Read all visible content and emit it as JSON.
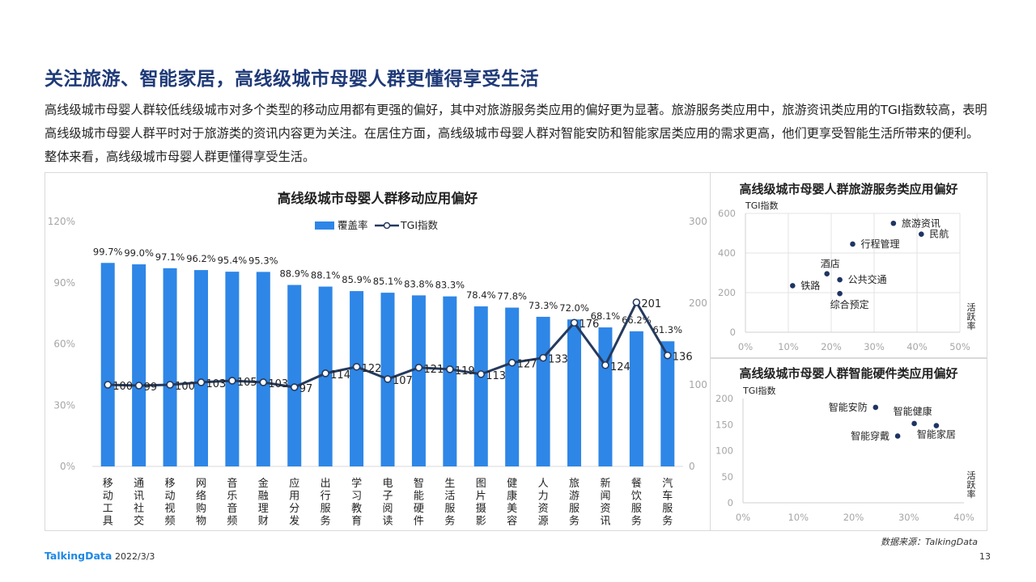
{
  "page": {
    "title": "关注旅游、智能家居，高线级城市母婴人群更懂得享受生活",
    "description": "高线级城市母婴人群较低线级城市对多个类型的移动应用都有更强的偏好，其中对旅游服务类应用的偏好更为显著。旅游服务类应用中，旅游资讯类应用的TGI指数较高，表明高线级城市母婴人群平时对于旅游类的资讯内容更为关注。在居住方面，高线级城市母婴人群对智能安防和智能家居类应用的需求更高，他们更享受智能生活所带来的便利。整体来看，高线级城市母婴人群更懂得享受生活。",
    "source": "数据来源：TalkingData",
    "logo": "TalkingData",
    "date": "2022/3/3",
    "page_number": "13"
  },
  "chart_data": [
    {
      "type": "bar",
      "title": "高线级城市母婴人群移动应用偏好",
      "categories": [
        "移动工具",
        "通讯社交",
        "移动视频",
        "网络购物",
        "音乐音频",
        "金融理财",
        "应用分发",
        "出行服务",
        "学习教育",
        "电子阅读",
        "智能硬件",
        "生活服务",
        "图片摄影",
        "健康美容",
        "人力资源",
        "旅游服务",
        "新闻资讯",
        "餐饮服务",
        "汽车服务"
      ],
      "series": [
        {
          "name": "覆盖率",
          "type": "bar",
          "axis": "left",
          "values": [
            99.7,
            99.0,
            97.1,
            96.2,
            95.4,
            95.3,
            88.9,
            88.1,
            85.9,
            85.1,
            83.8,
            83.3,
            78.4,
            77.8,
            73.3,
            72.0,
            68.1,
            66.2,
            61.3
          ],
          "labels": [
            "99.7%",
            "99.0%",
            "97.1%",
            "96.2%",
            "95.4%",
            "95.3%",
            "88.9%",
            "88.1%",
            "85.9%",
            "85.1%",
            "83.8%",
            "83.3%",
            "78.4%",
            "77.8%",
            "73.3%",
            "72.0%",
            "68.1%",
            "66.2%",
            "61.3%"
          ]
        },
        {
          "name": "TGI指数",
          "type": "line",
          "axis": "right",
          "values": [
            100,
            99,
            100,
            103,
            105,
            103,
            97,
            114,
            122,
            107,
            121,
            119,
            113,
            127,
            133,
            176,
            124,
            201,
            136
          ]
        }
      ],
      "y_left": {
        "ylim": [
          0,
          120
        ],
        "ticks": [
          "0%",
          "30%",
          "60%",
          "90%",
          "120%"
        ]
      },
      "y_right": {
        "ylim": [
          0,
          300
        ],
        "ticks": [
          "0",
          "100",
          "200",
          "300"
        ]
      },
      "legend": "top-center",
      "grid": false,
      "colors": {
        "bar": "#2e86e6",
        "line": "#253a5e"
      }
    },
    {
      "type": "scatter",
      "title": "高线级城市母婴人群旅游服务类应用偏好",
      "ylabel": "TGI指数",
      "xlabel": "活跃率",
      "xlim": [
        0,
        50
      ],
      "ylim": [
        0,
        600
      ],
      "x_ticks": [
        "0%",
        "10%",
        "20%",
        "30%",
        "40%",
        "50%"
      ],
      "y_ticks": [
        "0",
        "200",
        "400",
        "600"
      ],
      "points": [
        {
          "name": "旅游资讯",
          "x": 34.5,
          "y": 550
        },
        {
          "name": "民航",
          "x": 41,
          "y": 495
        },
        {
          "name": "行程管理",
          "x": 25,
          "y": 445
        },
        {
          "name": "酒店",
          "x": 19,
          "y": 295
        },
        {
          "name": "公共交通",
          "x": 22,
          "y": 265
        },
        {
          "name": "铁路",
          "x": 11,
          "y": 235
        },
        {
          "name": "综合预定",
          "x": 22,
          "y": 195
        }
      ],
      "grid": true,
      "colors": {
        "point": "#1f3464"
      }
    },
    {
      "type": "scatter",
      "title": "高线级城市母婴人群智能硬件类应用偏好",
      "ylabel": "TGI指数",
      "xlabel": "活跃率",
      "xlim": [
        0,
        40
      ],
      "ylim": [
        0,
        200
      ],
      "x_ticks": [
        "0%",
        "10%",
        "20%",
        "30%",
        "40%"
      ],
      "y_ticks": [
        "0",
        "50",
        "100",
        "150",
        "200"
      ],
      "points": [
        {
          "name": "智能安防",
          "x": 24,
          "y": 183
        },
        {
          "name": "智能健康",
          "x": 31,
          "y": 152
        },
        {
          "name": "智能穿戴",
          "x": 28,
          "y": 128
        },
        {
          "name": "智能家居",
          "x": 35,
          "y": 148
        }
      ],
      "grid": false,
      "colors": {
        "point": "#1f3464"
      }
    }
  ]
}
